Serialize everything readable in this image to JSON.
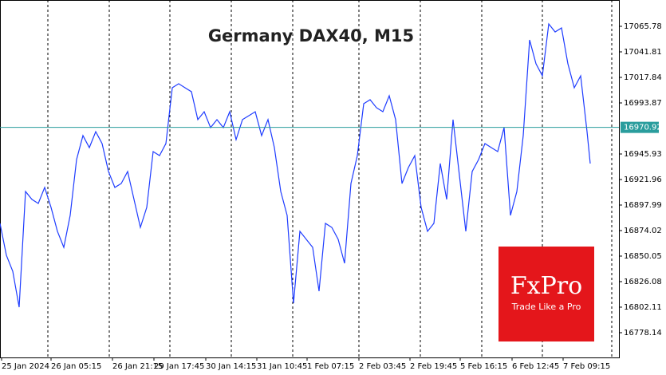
{
  "chart_data": {
    "type": "line",
    "title": "Germany DAX40, M15",
    "x": [
      0,
      8,
      16,
      24,
      32,
      40,
      48,
      56,
      64,
      72,
      80,
      88,
      96,
      104,
      112,
      120,
      128,
      136,
      144,
      152,
      160,
      168,
      176,
      184,
      192,
      200,
      208,
      216,
      224,
      232,
      240,
      248,
      256,
      264,
      272,
      280,
      288,
      296,
      304,
      312,
      320,
      328,
      336,
      344,
      352,
      360,
      368,
      376,
      384,
      392,
      400,
      408,
      416,
      424,
      432,
      440,
      448,
      456,
      464,
      472,
      480,
      488,
      496,
      504,
      512,
      520,
      528,
      536,
      544,
      552,
      560,
      568,
      576,
      584,
      592,
      600,
      608,
      616,
      624,
      632,
      640,
      648,
      656,
      664,
      672,
      680,
      688,
      696,
      704,
      712,
      720,
      728,
      736,
      740
    ],
    "series": [
      {
        "color": "#1e3cff",
        "values": [
          16880.8,
          16850.8,
          16835.8,
          16802.1,
          16910.7,
          16903.3,
          16899.5,
          16914.5,
          16895.8,
          16873.3,
          16858.3,
          16888.3,
          16940.7,
          16963.2,
          16951.9,
          16966.9,
          16955.7,
          16929.5,
          16914.5,
          16918.2,
          16929.5,
          16903.3,
          16877.0,
          16895.8,
          16948.2,
          16944.4,
          16955.7,
          17008.1,
          17011.9,
          17008.1,
          17004.4,
          16978.2,
          16985.6,
          16970.7,
          16978.2,
          16970.7,
          16985.6,
          16959.4,
          16978.2,
          16981.9,
          16985.6,
          16963.2,
          16978.2,
          16951.9,
          16910.7,
          16888.3,
          16805.9,
          16873.3,
          16865.8,
          16858.3,
          16817.1,
          16880.8,
          16877.0,
          16865.8,
          16843.3,
          16918.2,
          16944.4,
          16993.1,
          16996.9,
          16989.4,
          16985.6,
          17000.6,
          16978.2,
          16918.2,
          16933.2,
          16944.4,
          16895.8,
          16873.3,
          16880.8,
          16937.0,
          16903.3,
          16978.2,
          16925.7,
          16873.3,
          16929.5,
          16940.7,
          16955.7,
          16951.9,
          16948.2,
          16970.7,
          16888.3,
          16910.7,
          16963.2,
          17053.0,
          17030.6,
          17019.3,
          17068.0,
          17060.5,
          17064.3,
          17030.6,
          17008.1,
          17019.3,
          16966.9,
          16937.0
        ]
      }
    ],
    "xlim": [
      0,
      776
    ],
    "xticks": [
      {
        "value": 2,
        "label": "25 Jan 2024"
      },
      {
        "value": 64,
        "label": "26 Jan 05:15"
      },
      {
        "value": 141,
        "label": "26 Jan 21:15"
      },
      {
        "value": 193,
        "label": "29 Jan 17:45"
      },
      {
        "value": 258,
        "label": "30 Jan 14:15"
      },
      {
        "value": 322,
        "label": "31 Jan 10:45"
      },
      {
        "value": 385,
        "label": "1 Feb 07:15"
      },
      {
        "value": 450,
        "label": "2 Feb 03:45"
      },
      {
        "value": 514,
        "label": "2 Feb 19:45"
      },
      {
        "value": 577,
        "label": "5 Feb 16:15"
      },
      {
        "value": 642,
        "label": "6 Feb 12:45"
      },
      {
        "value": 706,
        "label": "7 Feb 09:15"
      }
    ],
    "ylim": [
      16754.9,
      17090.5
    ],
    "yticks": [
      17065.78,
      17041.81,
      17017.84,
      16993.87,
      16945.93,
      16921.96,
      16897.99,
      16874.02,
      16850.05,
      16826.08,
      16802.11,
      16778.14
    ],
    "current_price": 16970.92,
    "current_price_color": "#2a9d9d",
    "logo": {
      "name": "FxPro",
      "tagline": "Trade Like a Pro"
    }
  }
}
